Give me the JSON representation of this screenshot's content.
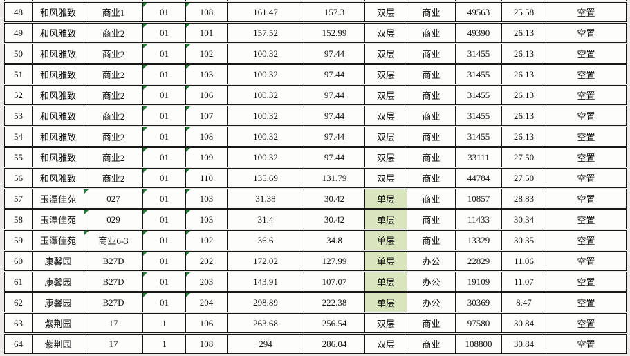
{
  "colors": {
    "highlight_green": "#d9e5bc",
    "error_indicator_green": "#1e7d34",
    "border": "#161616",
    "cell_background": "#fdfdfc",
    "page_background": "#ecebe8"
  },
  "labels": {
    "layer_double": "双层",
    "layer_single": "单层",
    "usage_commercial": "商业",
    "usage_office": "办公",
    "status_vacant": "空置"
  },
  "rows": [
    {
      "no": "48",
      "name": "和风雅致",
      "building": "商业1",
      "unit": "01",
      "room": "108",
      "area1": "161.47",
      "area2": "157.3",
      "layer": "双层",
      "usage": "商业",
      "total": "49563",
      "price": "25.58",
      "status": "空置",
      "layer_highlight": false,
      "flags": [
        "unit",
        "room"
      ]
    },
    {
      "no": "49",
      "name": "和风雅致",
      "building": "商业2",
      "unit": "01",
      "room": "101",
      "area1": "157.52",
      "area2": "152.99",
      "layer": "双层",
      "usage": "商业",
      "total": "49390",
      "price": "26.13",
      "status": "空置",
      "layer_highlight": false,
      "flags": [
        "unit",
        "room"
      ]
    },
    {
      "no": "50",
      "name": "和风雅致",
      "building": "商业2",
      "unit": "01",
      "room": "102",
      "area1": "100.32",
      "area2": "97.44",
      "layer": "双层",
      "usage": "商业",
      "total": "31455",
      "price": "26.13",
      "status": "空置",
      "layer_highlight": false,
      "flags": [
        "unit",
        "room"
      ]
    },
    {
      "no": "51",
      "name": "和风雅致",
      "building": "商业2",
      "unit": "01",
      "room": "103",
      "area1": "100.32",
      "area2": "97.44",
      "layer": "双层",
      "usage": "商业",
      "total": "31455",
      "price": "26.13",
      "status": "空置",
      "layer_highlight": false,
      "flags": [
        "unit",
        "room"
      ]
    },
    {
      "no": "52",
      "name": "和风雅致",
      "building": "商业2",
      "unit": "01",
      "room": "106",
      "area1": "100.32",
      "area2": "97.44",
      "layer": "双层",
      "usage": "商业",
      "total": "31455",
      "price": "26.13",
      "status": "空置",
      "layer_highlight": false,
      "flags": [
        "unit",
        "room"
      ]
    },
    {
      "no": "53",
      "name": "和风雅致",
      "building": "商业2",
      "unit": "01",
      "room": "107",
      "area1": "100.32",
      "area2": "97.44",
      "layer": "双层",
      "usage": "商业",
      "total": "31455",
      "price": "26.13",
      "status": "空置",
      "layer_highlight": false,
      "flags": [
        "unit",
        "room"
      ]
    },
    {
      "no": "54",
      "name": "和风雅致",
      "building": "商业2",
      "unit": "01",
      "room": "108",
      "area1": "100.32",
      "area2": "97.44",
      "layer": "双层",
      "usage": "商业",
      "total": "31455",
      "price": "26.13",
      "status": "空置",
      "layer_highlight": false,
      "flags": [
        "unit",
        "room"
      ]
    },
    {
      "no": "55",
      "name": "和风雅致",
      "building": "商业2",
      "unit": "01",
      "room": "109",
      "area1": "100.32",
      "area2": "97.44",
      "layer": "双层",
      "usage": "商业",
      "total": "33111",
      "price": "27.50",
      "status": "空置",
      "layer_highlight": false,
      "flags": [
        "unit",
        "room"
      ]
    },
    {
      "no": "56",
      "name": "和风雅致",
      "building": "商业2",
      "unit": "01",
      "room": "110",
      "area1": "135.69",
      "area2": "131.79",
      "layer": "双层",
      "usage": "商业",
      "total": "44784",
      "price": "27.50",
      "status": "空置",
      "layer_highlight": false,
      "flags": [
        "unit",
        "room"
      ]
    },
    {
      "no": "57",
      "name": "玉潭佳苑",
      "building": "027",
      "unit": "01",
      "room": "103",
      "area1": "31.38",
      "area2": "30.42",
      "layer": "单层",
      "usage": "商业",
      "total": "10857",
      "price": "28.83",
      "status": "空置",
      "layer_highlight": true,
      "flags": [
        "building",
        "unit",
        "room"
      ]
    },
    {
      "no": "58",
      "name": "玉潭佳苑",
      "building": "029",
      "unit": "01",
      "room": "103",
      "area1": "31.4",
      "area2": "30.42",
      "layer": "单层",
      "usage": "商业",
      "total": "11433",
      "price": "30.34",
      "status": "空置",
      "layer_highlight": true,
      "flags": [
        "building",
        "unit",
        "room"
      ]
    },
    {
      "no": "59",
      "name": "玉潭佳苑",
      "building": "商业6-3",
      "unit": "01",
      "room": "102",
      "area1": "36.6",
      "area2": "34.8",
      "layer": "单层",
      "usage": "商业",
      "total": "13329",
      "price": "30.35",
      "status": "空置",
      "layer_highlight": true,
      "flags": [
        "building",
        "unit",
        "room"
      ]
    },
    {
      "no": "60",
      "name": "康馨园",
      "building": "B27D",
      "unit": "01",
      "room": "202",
      "area1": "172.02",
      "area2": "127.99",
      "layer": "单层",
      "usage": "办公",
      "total": "22829",
      "price": "11.06",
      "status": "空置",
      "layer_highlight": true,
      "flags": [
        "unit",
        "room"
      ]
    },
    {
      "no": "61",
      "name": "康馨园",
      "building": "B27D",
      "unit": "01",
      "room": "203",
      "area1": "143.91",
      "area2": "107.07",
      "layer": "单层",
      "usage": "办公",
      "total": "19109",
      "price": "11.07",
      "status": "空置",
      "layer_highlight": true,
      "flags": [
        "unit",
        "room"
      ]
    },
    {
      "no": "62",
      "name": "康馨园",
      "building": "B27D",
      "unit": "01",
      "room": "204",
      "area1": "298.89",
      "area2": "222.38",
      "layer": "单层",
      "usage": "办公",
      "total": "30369",
      "price": "8.47",
      "status": "空置",
      "layer_highlight": true,
      "flags": [
        "unit",
        "room"
      ]
    },
    {
      "no": "63",
      "name": "紫荆园",
      "building": "17",
      "unit": "1",
      "room": "106",
      "area1": "263.68",
      "area2": "256.54",
      "layer": "双层",
      "usage": "商业",
      "total": "97580",
      "price": "30.84",
      "status": "空置",
      "layer_highlight": false,
      "flags": []
    },
    {
      "no": "64",
      "name": "紫荆园",
      "building": "17",
      "unit": "1",
      "room": "108",
      "area1": "294",
      "area2": "286.04",
      "layer": "双层",
      "usage": "商业",
      "total": "108800",
      "price": "30.84",
      "status": "空置",
      "layer_highlight": false,
      "flags": []
    }
  ]
}
